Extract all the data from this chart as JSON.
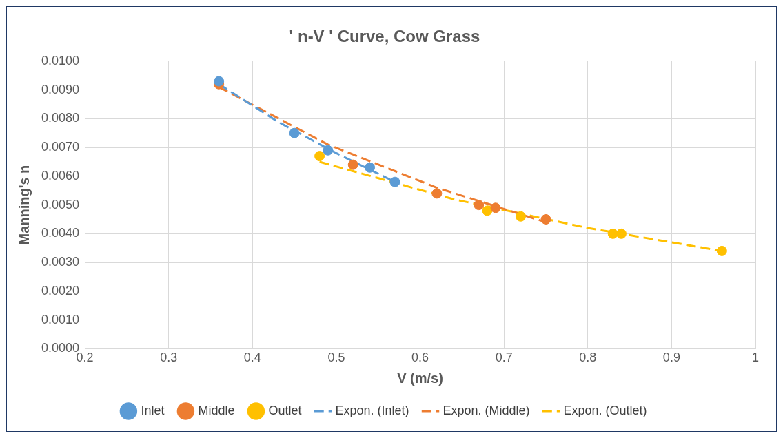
{
  "chart_data": {
    "type": "scatter",
    "title": "' n-V ' Curve, Cow Grass",
    "xlabel": "V (m/s)",
    "ylabel": "Manning's n",
    "xlim": [
      0.2,
      1
    ],
    "xticks": [
      0.2,
      0.3,
      0.4,
      0.5,
      0.6,
      0.7,
      0.8,
      0.9,
      1
    ],
    "ylim": [
      0,
      0.01
    ],
    "yticks": [
      {
        "value": 0,
        "label": "0.0000"
      },
      {
        "value": 0.001,
        "label": "0.0010"
      },
      {
        "value": 0.002,
        "label": "0.0020"
      },
      {
        "value": 0.003,
        "label": "0.0030"
      },
      {
        "value": 0.004,
        "label": "0.0040"
      },
      {
        "value": 0.005,
        "label": "0.0050"
      },
      {
        "value": 0.006,
        "label": "0.0060"
      },
      {
        "value": 0.007,
        "label": "0.0070"
      },
      {
        "value": 0.008,
        "label": "0.0080"
      },
      {
        "value": 0.009,
        "label": "0.0090"
      },
      {
        "value": 0.01,
        "label": "0.0100"
      }
    ],
    "grid": true,
    "legend": "bottom",
    "marker": "circle",
    "series": [
      {
        "name": "Inlet",
        "color": "#5b9bd5",
        "x": [
          0.36,
          0.45,
          0.49,
          0.54,
          0.57
        ],
        "values": [
          0.0093,
          0.0075,
          0.0069,
          0.0063,
          0.0058
        ]
      },
      {
        "name": "Middle",
        "color": "#ed7d31",
        "x": [
          0.36,
          0.52,
          0.62,
          0.67,
          0.69,
          0.75
        ],
        "values": [
          0.0092,
          0.0064,
          0.0054,
          0.005,
          0.0049,
          0.0045
        ]
      },
      {
        "name": "Outlet",
        "color": "#ffc000",
        "x": [
          0.48,
          0.68,
          0.72,
          0.83,
          0.84,
          0.96
        ],
        "values": [
          0.0067,
          0.0048,
          0.0046,
          0.004,
          0.004,
          0.0034
        ]
      },
      {
        "name": "Expon. (Inlet)",
        "type": "line",
        "line_style": "dashed",
        "marker": "none",
        "color": "#5b9bd5",
        "x": [
          0.36,
          0.43,
          0.5,
          0.57
        ],
        "values": [
          0.0092,
          0.0079,
          0.0068,
          0.0058
        ]
      },
      {
        "name": "Expon. (Middle)",
        "type": "line",
        "line_style": "dashed",
        "marker": "none",
        "color": "#ed7d31",
        "x": [
          0.36,
          0.49,
          0.62,
          0.75
        ],
        "values": [
          0.0091,
          0.0071,
          0.0056,
          0.0044
        ]
      },
      {
        "name": "Expon. (Outlet)",
        "type": "line",
        "line_style": "dashed",
        "marker": "none",
        "color": "#ffc000",
        "x": [
          0.48,
          0.64,
          0.8,
          0.96
        ],
        "values": [
          0.0065,
          0.0052,
          0.0042,
          0.0034
        ]
      }
    ]
  }
}
